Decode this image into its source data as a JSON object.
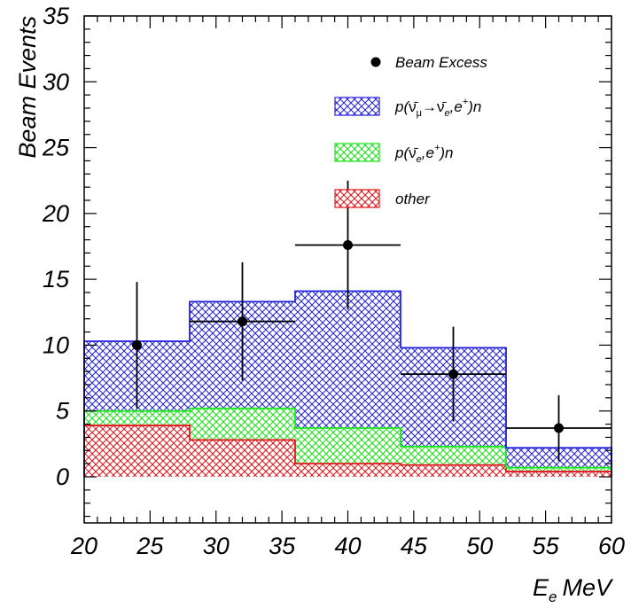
{
  "chart_data": {
    "type": "bar",
    "stacked": true,
    "xlabel": "E",
    "xlabel_sub": "e",
    "xlabel_unit": "MeV",
    "ylabel": "Beam Events",
    "xlim": [
      20,
      60
    ],
    "ylim": [
      -3.5,
      35
    ],
    "x_ticks": [
      20,
      25,
      30,
      35,
      40,
      45,
      50,
      55,
      60
    ],
    "y_ticks": [
      0,
      5,
      10,
      15,
      20,
      25,
      30,
      35
    ],
    "bin_edges": [
      20,
      28,
      36,
      44,
      52,
      60
    ],
    "series": [
      {
        "name": "other",
        "values": [
          3.9,
          2.8,
          1.0,
          0.9,
          0.4
        ],
        "color": "#e8141c"
      },
      {
        "name": "p(ν̄e,e+)n",
        "values": [
          1.1,
          2.4,
          2.7,
          1.4,
          0.3
        ],
        "color": "#19e619"
      },
      {
        "name": "p(ν̄μ→ν̄e,e+)n",
        "values": [
          5.3,
          8.1,
          10.4,
          7.5,
          1.5
        ],
        "color": "#2222dd"
      }
    ],
    "data_points": {
      "name": "Beam Excess",
      "x": [
        24,
        32,
        40,
        48,
        56
      ],
      "y": [
        10.0,
        11.8,
        17.6,
        7.8,
        3.7
      ],
      "xerr": [
        0,
        4,
        4,
        4,
        4
      ],
      "yerr": [
        4.8,
        4.5,
        4.9,
        3.6,
        2.5
      ]
    },
    "legend_position": "top-right",
    "grid": false
  },
  "legend": {
    "beam_excess": "Beam Excess",
    "numubar": {
      "p1": "p(",
      "nu_mu": "ν̄",
      "sub_mu": "μ",
      "arrow": "→",
      "nu_e": "ν̄",
      "sub_e": "e",
      "comma": ",e",
      "sup_plus": "+",
      "end": ")n"
    },
    "nuebar": {
      "p1": "p(",
      "nu_e": "ν̄",
      "sub_e": "e",
      "comma": ",e",
      "sup_plus": "+",
      "end": ")n"
    },
    "other": "other"
  }
}
